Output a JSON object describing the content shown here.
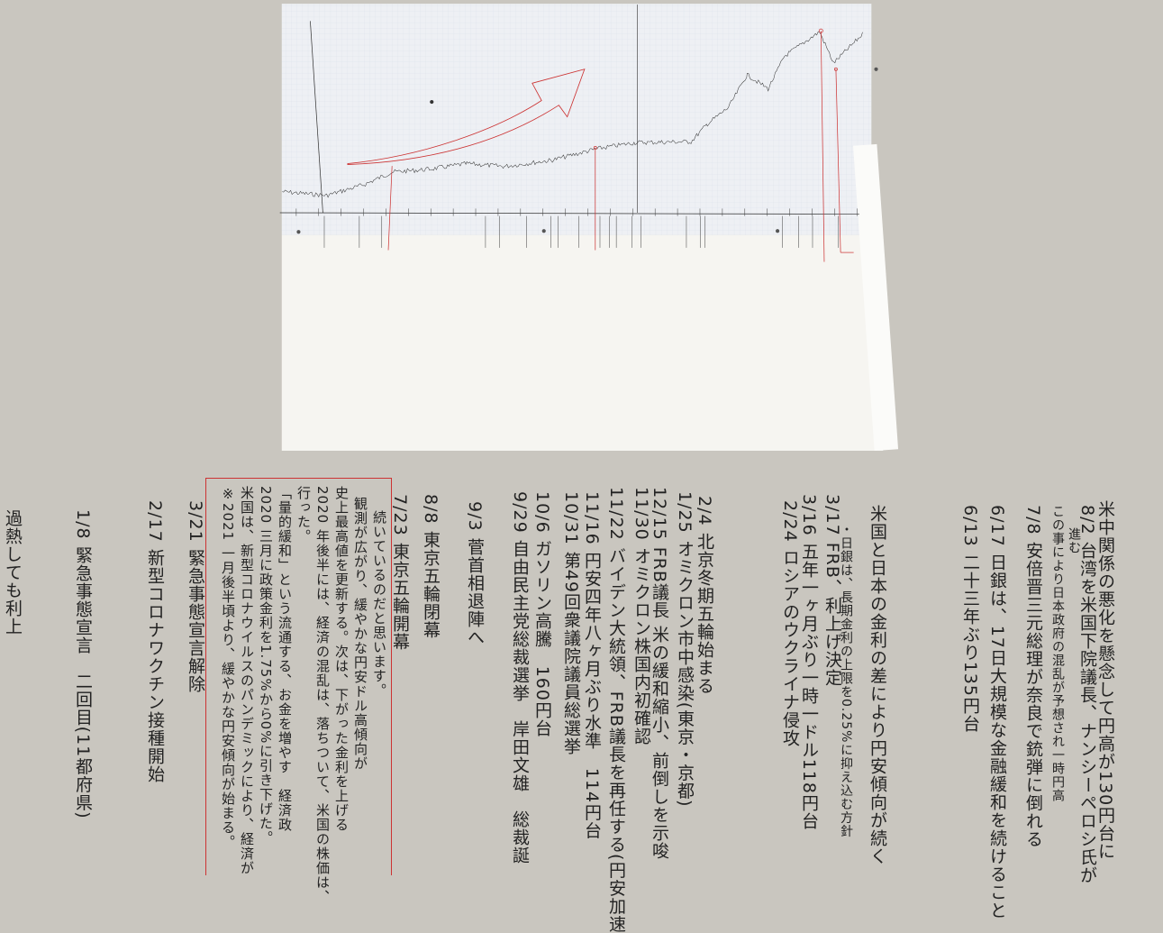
{
  "annotations": [
    {
      "text": "過熱しても利上"
    },
    {
      "text": "1/8 緊急事態宣言　二回目(11都府県)"
    },
    {
      "text": "2/17 新型コロナワクチン接種開始"
    },
    {
      "text": "3/21 緊急事態宣言解除"
    },
    {
      "text": "7/23 東京五輪開幕"
    },
    {
      "text": "8/8 東京五輪閉幕"
    },
    {
      "text": "9/3 菅首相退陣へ"
    },
    {
      "text": "9/29 自由民主党総裁選挙　岸田文雄　総裁誕"
    },
    {
      "text": "10/6 ガソリン高騰　160円台"
    },
    {
      "text": "10/31 第49回衆議院議員総選挙"
    },
    {
      "text": "11/16 円安四年八ヶ月ぶり水準　114円台"
    },
    {
      "text": "11/22 バイデン大統領、FRB議長を再任する(円安加速"
    },
    {
      "text": "11/30 オミクロン株国内初確認"
    },
    {
      "text": "12/15 FRB議長 米の緩和縮小、前倒しを示唆"
    },
    {
      "text": "1/25 オミクロン市中感染(東京・京都)"
    },
    {
      "text": "2/4 北京冬期五輪始まる"
    },
    {
      "text": "2/24 ロシアのウクライナ侵攻"
    },
    {
      "text": "3/16 五年一ヶ月ぶり一時一ドル118円台"
    },
    {
      "text": "3/17 FRB、利上げ決定"
    },
    {
      "text": "・日銀は、長期金利の上限を0.25%に抑え込む方針"
    },
    {
      "text": "米国と日本の金利の差により円安傾向が続く"
    },
    {
      "text": "6/13 二十三年ぶり135円台"
    },
    {
      "text": "6/17 日銀は、17日大規模な金融緩和を続けること"
    },
    {
      "text": "7/8 安倍晋三元総理が奈良で銃弾に倒れる"
    },
    {
      "text": "この事により日本政府の混乱が予想され一時円高"
    },
    {
      "text": "進む"
    },
    {
      "text": "8/2 台湾を米国下院議長、ナンシーペロシ氏が"
    },
    {
      "text": "米中関係の悪化を懸念して円高が130円台に"
    }
  ],
  "note_box": {
    "lines": [
      "※2021 一月後半頃より、緩やかな円安傾向が始まる。",
      "米国は、新型コロナウイルスのパンデミックにより、経済が",
      "2020 三月に政策金利を1.75%から0%に引き下げた。",
      "「量的緩和」という流通する、お金を増やす　経済政",
      "行った。",
      "2020 年後半には、経済の混乱は、落ちついて、米国の株価は、",
      "史上最高値を更新する。次は、下がった金利を上げる",
      "観測が広がり、緩やかな円安ドル高傾向が",
      "続いているのだと思います。"
    ]
  }
}
